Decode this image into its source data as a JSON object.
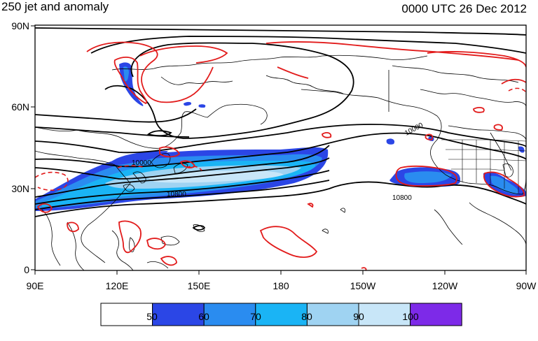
{
  "header": {
    "title_left": "250 jet and anomaly",
    "title_right": "0000 UTC 26 Dec 2012"
  },
  "axes": {
    "lat_ticks": [
      "90N",
      "60N",
      "30N",
      "0"
    ],
    "lon_ticks": [
      "90E",
      "120E",
      "150E",
      "180",
      "150W",
      "120W",
      "90W"
    ]
  },
  "contour_labels": [
    "10000",
    "10800",
    "10800",
    "10000"
  ],
  "colorbar": {
    "labels": [
      "50",
      "60",
      "70",
      "80",
      "90",
      "100"
    ],
    "colors": [
      "#ffffff",
      "#2b46e6",
      "#2a8cf0",
      "#1ab4f5",
      "#9fd3f2",
      "#c8e6f8",
      "#7d2ae8"
    ]
  },
  "colors": {
    "anomaly_contour": "#e21b1b",
    "height_contour": "#000000",
    "coastline": "#000000"
  }
}
